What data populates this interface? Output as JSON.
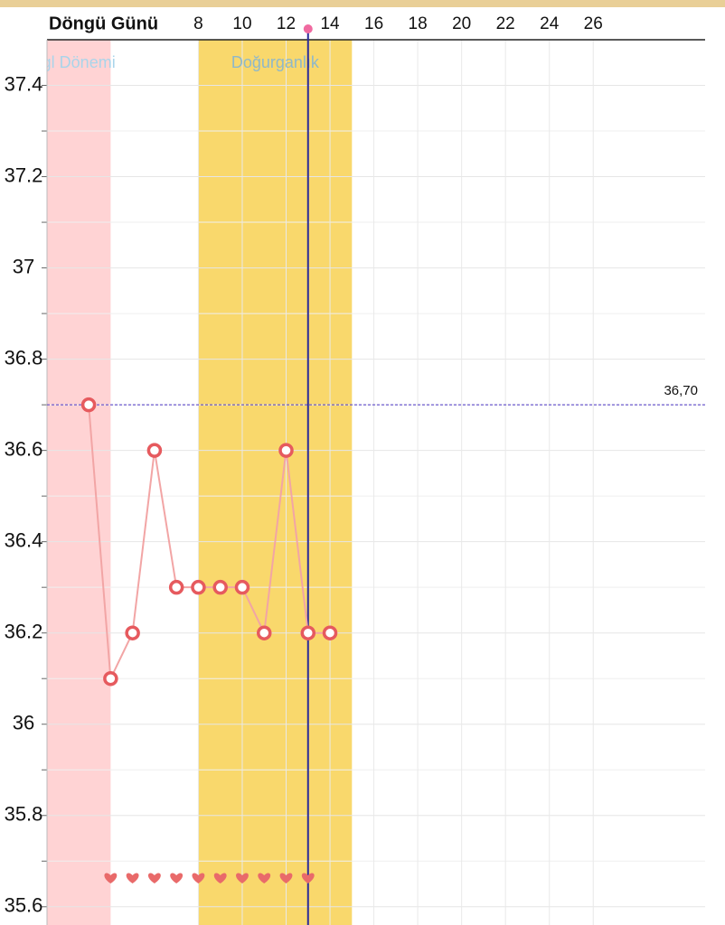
{
  "chart_data": {
    "type": "line",
    "xlabel": "Döngü Günü",
    "x": [
      3,
      4,
      5,
      6,
      7,
      8,
      9,
      10,
      11,
      12,
      13,
      14
    ],
    "series": [
      {
        "color": "#f2a5a5",
        "marker_color": "#e65a5e",
        "values": [
          36.7,
          36.1,
          36.2,
          36.6,
          36.3,
          36.3,
          36.3,
          36.3,
          36.2,
          36.6,
          36.2,
          36.2
        ]
      }
    ],
    "xlim": [
      1.1,
      31.1
    ],
    "xticks": [
      8,
      10,
      12,
      14,
      16,
      18,
      20,
      22,
      24,
      26
    ],
    "ylim": [
      35.56,
      37.5
    ],
    "yticks": [
      35.6,
      35.8,
      36,
      36.2,
      36.4,
      36.6,
      36.8,
      37,
      37.2,
      37.4
    ],
    "grid": true,
    "bands": [
      {
        "label": "gl Dönemi",
        "range": [
          1.1,
          4
        ],
        "color": "#ffd3d4",
        "label_color": "#a9d4ea"
      },
      {
        "label": "Doğurganlık",
        "range": [
          8,
          15
        ],
        "color": "#f9d86c",
        "label_color": "#8fb8c9"
      }
    ],
    "reference_line": {
      "value": 36.7,
      "label": "36,70",
      "color": "#6a5acd"
    },
    "today": {
      "x": 13,
      "color": "#2b2b9a",
      "dot_color": "#f06aa0"
    },
    "hearts": {
      "x": [
        4,
        5,
        6,
        7,
        8,
        9,
        10,
        11,
        12,
        13
      ],
      "color": "#e96a6a"
    }
  }
}
